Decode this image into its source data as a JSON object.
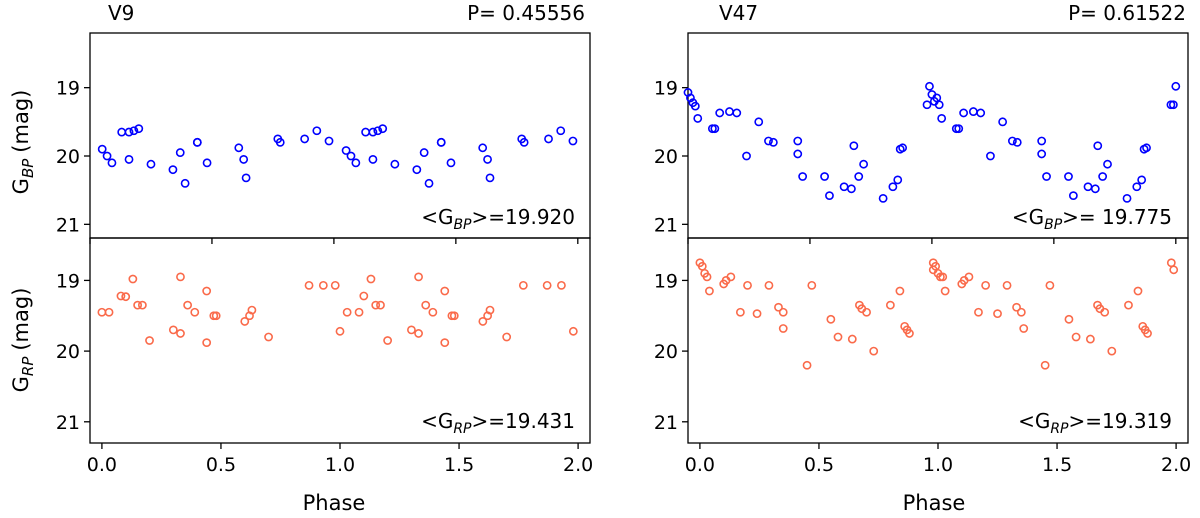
{
  "chart_data": [
    {
      "type": "scatter",
      "title_left": "V9",
      "title_right": "P= 0.45556",
      "ylabel": "G_BP (mag)",
      "ylabel_main": "G",
      "ylabel_sub": "BP",
      "ylabel_unit": "(mag)",
      "annotation_prefix": "<G",
      "annotation_sub": "BP",
      "annotation_suffix": ">=19.920",
      "xlim": [
        0.0,
        2.05
      ],
      "ylim": [
        21.2,
        18.2
      ],
      "y_inverted": true,
      "yticks": [
        19,
        20,
        21
      ],
      "color": "#0000ff",
      "series": [
        {
          "x": [
            0.05,
            0.07,
            0.09,
            0.13,
            0.16,
            0.16,
            0.18,
            0.2,
            0.25,
            0.34,
            0.37,
            0.39,
            0.44,
            0.44,
            0.48,
            0.61,
            0.63,
            0.64,
            0.77,
            0.78,
            0.88,
            0.93,
            0.98,
            1.05,
            1.07,
            1.09,
            1.13,
            1.16,
            1.16,
            1.18,
            1.2,
            1.25,
            1.34,
            1.37,
            1.39,
            1.44,
            1.44,
            1.48,
            1.61,
            1.63,
            1.64,
            1.77,
            1.78,
            1.88,
            1.93,
            1.98
          ],
          "y": [
            19.9,
            20.0,
            20.1,
            19.65,
            20.05,
            19.65,
            19.63,
            19.6,
            20.12,
            20.2,
            19.95,
            20.4,
            19.8,
            19.8,
            20.1,
            19.88,
            20.05,
            20.32,
            19.75,
            19.8,
            19.75,
            19.63,
            19.78,
            19.92,
            20.0,
            20.1,
            19.65,
            20.05,
            19.65,
            19.63,
            19.6,
            20.12,
            20.2,
            19.95,
            20.4,
            19.8,
            19.8,
            20.1,
            19.88,
            20.05,
            20.32,
            19.75,
            19.8,
            19.75,
            19.63,
            19.78
          ]
        }
      ]
    },
    {
      "type": "scatter",
      "title_left": "V47",
      "title_right": "P= 0.61522",
      "ylabel": "",
      "annotation_prefix": "<G",
      "annotation_sub": "BP",
      "annotation_suffix": ">= 19.775",
      "xlim": [
        0.0,
        2.05
      ],
      "ylim": [
        21.2,
        18.2
      ],
      "y_inverted": true,
      "yticks": [
        19,
        20,
        21
      ],
      "color": "#0000ff",
      "series": [
        {
          "x": [
            0.0,
            0.01,
            0.02,
            0.03,
            0.04,
            0.1,
            0.11,
            0.13,
            0.17,
            0.2,
            0.24,
            0.29,
            0.33,
            0.35,
            0.45,
            0.45,
            0.47,
            0.56,
            0.58,
            0.64,
            0.67,
            0.68,
            0.7,
            0.72,
            0.8,
            0.84,
            0.86,
            0.87,
            0.88,
            0.98,
            0.99,
            1.0,
            1.01,
            1.02,
            1.03,
            1.04,
            1.1,
            1.11,
            1.13,
            1.17,
            1.2,
            1.24,
            1.29,
            1.33,
            1.35,
            1.45,
            1.45,
            1.47,
            1.56,
            1.58,
            1.64,
            1.67,
            1.68,
            1.7,
            1.72,
            1.8,
            1.84,
            1.86,
            1.87,
            1.88,
            1.98,
            1.99,
            2.0
          ],
          "y": [
            19.07,
            19.15,
            19.22,
            19.27,
            19.45,
            19.6,
            19.6,
            19.37,
            19.35,
            19.37,
            20.0,
            19.5,
            19.78,
            19.8,
            19.78,
            19.97,
            20.3,
            20.3,
            20.58,
            20.45,
            20.48,
            19.85,
            20.3,
            20.12,
            20.62,
            20.45,
            20.35,
            19.9,
            19.88,
            19.25,
            18.98,
            19.1,
            19.2,
            19.15,
            19.25,
            19.45,
            19.6,
            19.6,
            19.37,
            19.35,
            19.37,
            20.0,
            19.5,
            19.78,
            19.8,
            19.78,
            19.97,
            20.3,
            20.3,
            20.58,
            20.45,
            20.48,
            19.85,
            20.3,
            20.12,
            20.62,
            20.45,
            20.35,
            19.9,
            19.88,
            19.25,
            19.25,
            18.98
          ]
        }
      ]
    },
    {
      "type": "scatter",
      "ylabel": "G_RP (mag)",
      "ylabel_main": "G",
      "ylabel_sub": "RP",
      "ylabel_unit": "(mag)",
      "xlabel": "Phase",
      "annotation_prefix": "<G",
      "annotation_sub": "RP",
      "annotation_suffix": ">=19.431",
      "xlim": [
        -0.05,
        2.05
      ],
      "ylim": [
        21.3,
        18.4
      ],
      "y_inverted": true,
      "xticks": [
        "0.0",
        "0.5",
        "1.0",
        "1.5",
        "2.0"
      ],
      "yticks": [
        19,
        20,
        21
      ],
      "color": "#fa6a4a",
      "series": [
        {
          "x": [
            0.0,
            0.03,
            0.08,
            0.1,
            0.13,
            0.15,
            0.17,
            0.2,
            0.3,
            0.33,
            0.33,
            0.36,
            0.39,
            0.44,
            0.44,
            0.47,
            0.48,
            0.6,
            0.62,
            0.63,
            0.7,
            0.87,
            0.93,
            0.98,
            1.0,
            1.03,
            1.08,
            1.1,
            1.13,
            1.15,
            1.17,
            1.2,
            1.3,
            1.33,
            1.33,
            1.36,
            1.39,
            1.44,
            1.44,
            1.47,
            1.48,
            1.6,
            1.62,
            1.63,
            1.7,
            1.77,
            1.87,
            1.93,
            1.98
          ],
          "y": [
            19.45,
            19.45,
            19.22,
            19.23,
            18.98,
            19.35,
            19.35,
            19.85,
            19.7,
            18.95,
            19.75,
            19.35,
            19.45,
            19.15,
            19.88,
            19.5,
            19.5,
            19.58,
            19.5,
            19.42,
            19.8,
            19.07,
            19.07,
            19.07,
            19.72,
            19.45,
            19.45,
            19.22,
            18.98,
            19.35,
            19.35,
            19.85,
            19.7,
            18.95,
            19.75,
            19.35,
            19.45,
            19.15,
            19.88,
            19.5,
            19.5,
            19.58,
            19.5,
            19.42,
            19.8,
            19.07,
            19.07,
            19.07,
            19.72
          ]
        }
      ]
    },
    {
      "type": "scatter",
      "ylabel": "",
      "xlabel": "Phase",
      "annotation_prefix": "<G",
      "annotation_sub": "RP",
      "annotation_suffix": ">=19.319",
      "xlim": [
        -0.05,
        2.05
      ],
      "ylim": [
        21.3,
        18.4
      ],
      "y_inverted": true,
      "xticks": [
        "0.0",
        "0.5",
        "1.0",
        "1.5",
        "2.0"
      ],
      "yticks": [
        19,
        20,
        21
      ],
      "color": "#fa6a4a",
      "series": [
        {
          "x": [
            0.0,
            0.01,
            0.02,
            0.03,
            0.04,
            0.1,
            0.11,
            0.13,
            0.17,
            0.2,
            0.24,
            0.29,
            0.33,
            0.35,
            0.35,
            0.45,
            0.47,
            0.55,
            0.58,
            0.64,
            0.67,
            0.68,
            0.7,
            0.73,
            0.8,
            0.84,
            0.86,
            0.87,
            0.88,
            0.98,
            0.98,
            0.99,
            1.0,
            1.01,
            1.02,
            1.03,
            1.1,
            1.11,
            1.13,
            1.17,
            1.2,
            1.25,
            1.29,
            1.33,
            1.35,
            1.36,
            1.45,
            1.47,
            1.55,
            1.58,
            1.64,
            1.67,
            1.68,
            1.7,
            1.73,
            1.8,
            1.84,
            1.86,
            1.87,
            1.88,
            1.98,
            1.99
          ],
          "y": [
            18.75,
            18.8,
            18.9,
            18.95,
            19.15,
            19.05,
            19.0,
            18.95,
            19.45,
            19.07,
            19.47,
            19.07,
            19.38,
            19.45,
            19.68,
            20.2,
            19.07,
            19.55,
            19.8,
            19.83,
            19.35,
            19.4,
            19.45,
            20.0,
            19.35,
            19.15,
            19.65,
            19.7,
            19.75,
            18.75,
            18.85,
            18.8,
            18.9,
            18.95,
            18.95,
            19.15,
            19.05,
            19.0,
            18.95,
            19.45,
            19.07,
            19.47,
            19.07,
            19.38,
            19.45,
            19.68,
            20.2,
            19.07,
            19.55,
            19.8,
            19.83,
            19.35,
            19.4,
            19.45,
            20.0,
            19.35,
            19.15,
            19.65,
            19.7,
            19.75,
            18.75,
            18.85
          ]
        }
      ]
    }
  ]
}
